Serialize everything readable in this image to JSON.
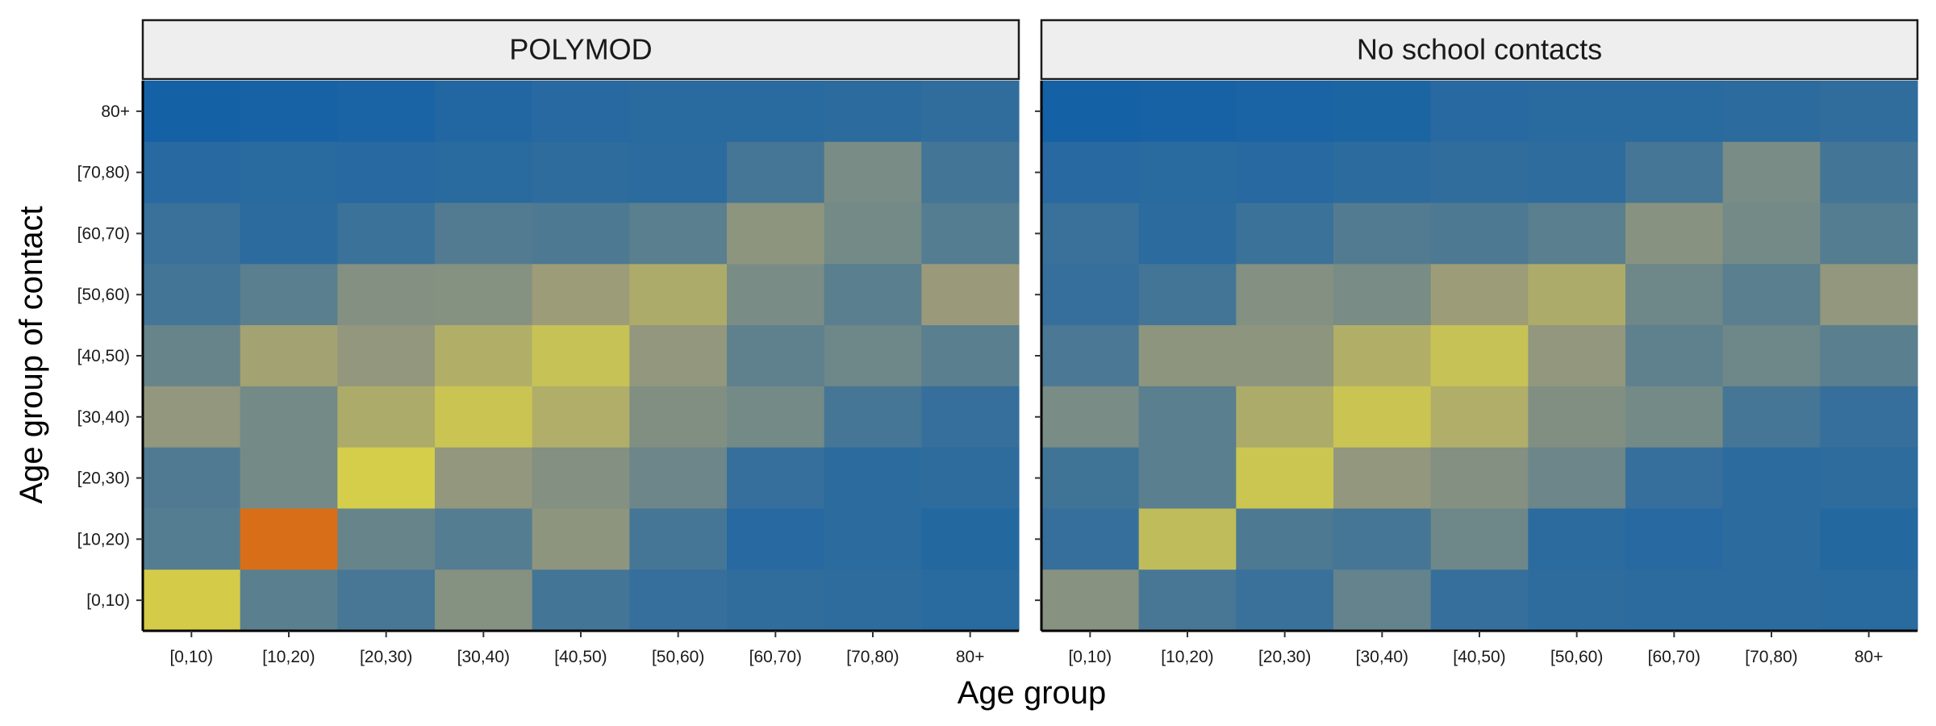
{
  "chart_data": {
    "type": "heatmap",
    "xlabel": "Age group",
    "ylabel": "Age group of contact",
    "categories": [
      "[0,10)",
      "[10,20)",
      "[20,30)",
      "[30,40)",
      "[40,50)",
      "[50,60)",
      "[60,70)",
      "[70,80)",
      "80+"
    ],
    "color_scale": {
      "low": "#0d5ea8",
      "mid": "#9a9a7a",
      "high_mid": "#d4ce4a",
      "high": "#d86e18"
    },
    "legend": "none",
    "grid": false,
    "panels": [
      {
        "title": "POLYMOD",
        "rows": [
          {
            "y": "80+",
            "values": [
              0.03,
              0.04,
              0.05,
              0.08,
              0.1,
              0.11,
              0.11,
              0.12,
              0.14
            ]
          },
          {
            "y": "[70,80)",
            "values": [
              0.1,
              0.11,
              0.1,
              0.11,
              0.13,
              0.12,
              0.22,
              0.42,
              0.21
            ]
          },
          {
            "y": "[60,70)",
            "values": [
              0.17,
              0.12,
              0.18,
              0.27,
              0.25,
              0.3,
              0.5,
              0.4,
              0.28
            ]
          },
          {
            "y": "[50,60)",
            "values": [
              0.21,
              0.3,
              0.46,
              0.47,
              0.57,
              0.7,
              0.42,
              0.3,
              0.55
            ]
          },
          {
            "y": "[40,50)",
            "values": [
              0.35,
              0.62,
              0.52,
              0.73,
              0.9,
              0.52,
              0.32,
              0.38,
              0.3
            ]
          },
          {
            "y": "[30,40)",
            "values": [
              0.52,
              0.4,
              0.7,
              0.92,
              0.72,
              0.45,
              0.4,
              0.22,
              0.16
            ]
          },
          {
            "y": "[20,30)",
            "values": [
              0.26,
              0.4,
              1.0,
              0.52,
              0.46,
              0.37,
              0.16,
              0.12,
              0.13
            ]
          },
          {
            "y": "[10,20)",
            "values": [
              0.28,
              1.55,
              0.35,
              0.28,
              0.5,
              0.22,
              0.1,
              0.12,
              0.09
            ]
          },
          {
            "y": "[0,10)",
            "values": [
              1.02,
              0.3,
              0.23,
              0.47,
              0.21,
              0.16,
              0.14,
              0.13,
              0.11
            ]
          }
        ]
      },
      {
        "title": "No school contacts",
        "rows": [
          {
            "y": "80+",
            "values": [
              0.03,
              0.04,
              0.05,
              0.06,
              0.1,
              0.11,
              0.11,
              0.12,
              0.14
            ]
          },
          {
            "y": "[70,80)",
            "values": [
              0.1,
              0.11,
              0.1,
              0.12,
              0.14,
              0.13,
              0.22,
              0.42,
              0.21
            ]
          },
          {
            "y": "[60,70)",
            "values": [
              0.17,
              0.12,
              0.18,
              0.27,
              0.25,
              0.3,
              0.48,
              0.4,
              0.28
            ]
          },
          {
            "y": "[50,60)",
            "values": [
              0.16,
              0.21,
              0.46,
              0.42,
              0.57,
              0.7,
              0.38,
              0.3,
              0.52
            ]
          },
          {
            "y": "[40,50)",
            "values": [
              0.24,
              0.5,
              0.5,
              0.73,
              0.9,
              0.52,
              0.32,
              0.38,
              0.3
            ]
          },
          {
            "y": "[30,40)",
            "values": [
              0.42,
              0.3,
              0.7,
              0.92,
              0.72,
              0.45,
              0.4,
              0.22,
              0.16
            ]
          },
          {
            "y": "[20,30)",
            "values": [
              0.2,
              0.3,
              0.93,
              0.52,
              0.46,
              0.37,
              0.16,
              0.12,
              0.13
            ]
          },
          {
            "y": "[10,20)",
            "values": [
              0.16,
              0.84,
              0.25,
              0.22,
              0.38,
              0.12,
              0.1,
              0.12,
              0.09
            ]
          },
          {
            "y": "[0,10)",
            "values": [
              0.48,
              0.23,
              0.17,
              0.34,
              0.16,
              0.13,
              0.12,
              0.12,
              0.11
            ]
          }
        ]
      }
    ]
  }
}
